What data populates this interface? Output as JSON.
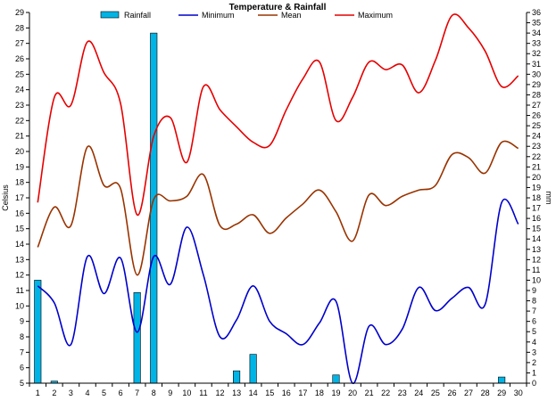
{
  "chart_data": {
    "type": "bar+line",
    "title": "Temperature & Rainfall",
    "ylabel_left": "Celsius",
    "ylabel_right": "mm",
    "left_axis": {
      "min": 5,
      "max": 29,
      "step": 1
    },
    "right_axis": {
      "min": 0,
      "max": 36,
      "step": 1
    },
    "x": [
      1,
      2,
      3,
      4,
      5,
      6,
      7,
      8,
      9,
      10,
      11,
      12,
      13,
      14,
      15,
      16,
      17,
      18,
      19,
      20,
      21,
      22,
      23,
      24,
      25,
      26,
      27,
      28,
      29,
      30
    ],
    "grid": false,
    "legend_position": "top",
    "series": [
      {
        "name": "Rainfall",
        "type": "bar",
        "axis": "right",
        "color": "#00b4e6",
        "values": [
          10,
          0.2,
          0,
          0,
          0,
          0,
          8.8,
          34,
          0,
          0,
          0,
          0,
          1.2,
          2.8,
          0,
          0,
          0,
          0,
          0.8,
          0,
          0,
          0,
          0,
          0,
          0,
          0,
          0,
          0,
          0.6,
          0
        ]
      },
      {
        "name": "Minimum",
        "type": "line",
        "axis": "left",
        "color": "#0000cc",
        "values": [
          11.3,
          10.2,
          7.5,
          13.2,
          10.8,
          13.1,
          8.3,
          13.2,
          11.4,
          15.1,
          12.0,
          8.0,
          9.1,
          11.3,
          9.0,
          8.2,
          7.5,
          8.9,
          10.3,
          5.0,
          8.7,
          7.5,
          8.5,
          11.2,
          9.7,
          10.5,
          11.2,
          10.1,
          16.7,
          15.3
        ]
      },
      {
        "name": "Mean",
        "type": "line",
        "axis": "left",
        "color": "#993300",
        "values": [
          13.8,
          16.4,
          15.2,
          20.3,
          17.8,
          17.6,
          12.0,
          16.9,
          16.8,
          17.1,
          18.5,
          15.2,
          15.3,
          15.9,
          14.7,
          15.7,
          16.6,
          17.5,
          16.1,
          14.2,
          17.2,
          16.5,
          17.1,
          17.5,
          17.8,
          19.8,
          19.6,
          18.6,
          20.6,
          20.2
        ]
      },
      {
        "name": "Maximum",
        "type": "line",
        "axis": "left",
        "color": "#e60000",
        "values": [
          16.7,
          23.5,
          23.0,
          27.1,
          25.1,
          23.1,
          15.9,
          21.0,
          22.2,
          19.3,
          24.2,
          22.7,
          21.6,
          20.6,
          20.4,
          22.7,
          24.7,
          25.8,
          22.0,
          23.5,
          25.8,
          25.3,
          25.6,
          23.8,
          25.9,
          28.8,
          28.0,
          26.5,
          24.2,
          24.9
        ]
      }
    ]
  }
}
